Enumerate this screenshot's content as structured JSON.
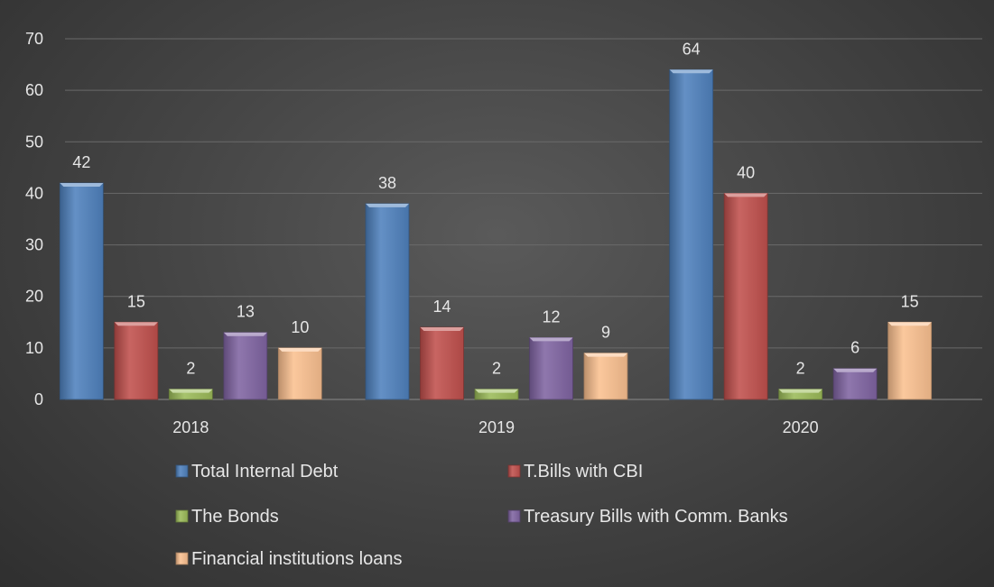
{
  "chart_data": {
    "type": "bar",
    "categories": [
      "2018",
      "2019",
      "2020"
    ],
    "series": [
      {
        "name": "Total Internal Debt",
        "values": [
          42,
          38,
          64
        ],
        "color": "#4f81bd"
      },
      {
        "name": "T.Bills with CBI",
        "values": [
          15,
          14,
          40
        ],
        "color": "#c0504d"
      },
      {
        "name": "The Bonds",
        "values": [
          2,
          2,
          2
        ],
        "color": "#9bbb59"
      },
      {
        "name": "Treasury Bills with Comm. Banks",
        "values": [
          13,
          12,
          6
        ],
        "color": "#8064a2"
      },
      {
        "name": "Financial institutions loans",
        "values": [
          10,
          9,
          15
        ],
        "color": "#fac090"
      }
    ],
    "data_labels": [
      [
        "42",
        "15",
        "2",
        "13",
        "10"
      ],
      [
        "38",
        "14",
        "2",
        "12",
        "9"
      ],
      [
        "64",
        "40",
        "2",
        "6",
        "15"
      ]
    ],
    "y_ticks": [
      "0",
      "10",
      "20",
      "30",
      "40",
      "50",
      "60",
      "70"
    ],
    "ylim": [
      0,
      70
    ],
    "grid": true,
    "legend_position": "bottom",
    "title": "",
    "xlabel": "",
    "ylabel": ""
  }
}
